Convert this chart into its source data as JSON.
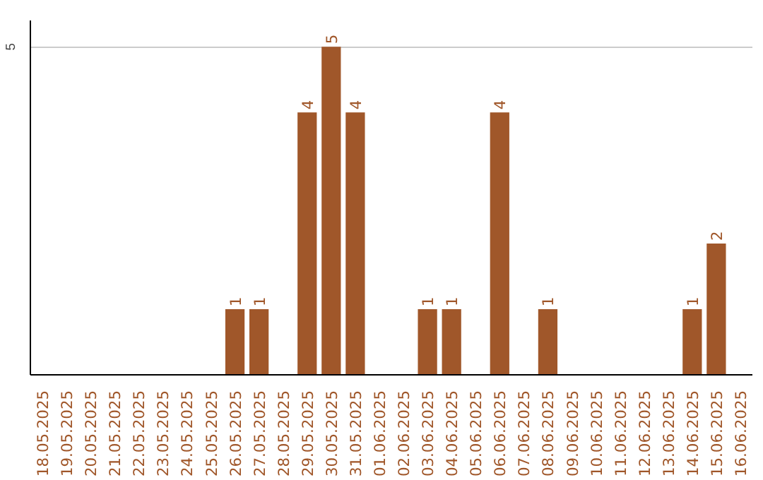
{
  "chart_data": {
    "type": "bar",
    "categories": [
      "18.05.2025",
      "19.05.2025",
      "20.05.2025",
      "21.05.2025",
      "22.05.2025",
      "23.05.2025",
      "24.05.2025",
      "25.05.2025",
      "26.05.2025",
      "27.05.2025",
      "28.05.2025",
      "29.05.2025",
      "30.05.2025",
      "31.05.2025",
      "01.06.2025",
      "02.06.2025",
      "03.06.2025",
      "04.06.2025",
      "05.06.2025",
      "06.06.2025",
      "07.06.2025",
      "08.06.2025",
      "09.06.2025",
      "10.06.2025",
      "11.06.2025",
      "12.06.2025",
      "13.06.2025",
      "14.06.2025",
      "15.06.2025",
      "16.06.2025"
    ],
    "values": [
      0,
      0,
      0,
      0,
      0,
      0,
      0,
      0,
      1,
      1,
      0,
      4,
      5,
      4,
      0,
      0,
      1,
      1,
      0,
      4,
      0,
      1,
      0,
      0,
      0,
      0,
      0,
      1,
      2,
      0
    ],
    "value_labels": [
      null,
      null,
      null,
      null,
      null,
      null,
      null,
      null,
      "1",
      "1",
      null,
      "4",
      "5",
      "4",
      null,
      null,
      "1",
      "1",
      null,
      "4",
      null,
      "1",
      null,
      null,
      null,
      null,
      null,
      "1",
      "2",
      null
    ],
    "color": "#a0572a",
    "ylim": [
      0,
      5.4
    ],
    "yticks": [
      5
    ],
    "grid": "y"
  }
}
